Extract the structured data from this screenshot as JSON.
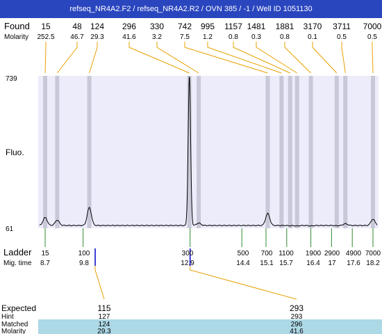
{
  "title": "refseq_NR4A2.F2 / refseq_NR4A2.R2 / OVN 385 / -1 / Well ID 1051130",
  "labels": {
    "found": "Found",
    "molarity": "Molarity",
    "fluo": "Fluo.",
    "ladder": "Ladder",
    "mig_time": "Mig. time",
    "expected": "Expected",
    "hint": "Hint",
    "matched": "Matched",
    "molarity_row": "Molarity"
  },
  "colors": {
    "title_bg": "#2a46bf",
    "plot_bg": "#ececfb",
    "peak_band": "#c8c8d8",
    "connector": "#e8a000",
    "ladder_tick": "#2e8b2e",
    "marker": "#0000cc",
    "matched_bg": "#add8e6"
  },
  "chart_data": {
    "type": "line",
    "y_axis": {
      "max_label": "739",
      "min_label": "61",
      "ylim": [
        61,
        739
      ]
    },
    "found_peaks": [
      {
        "size": "15",
        "molarity": "252.5",
        "mig_time": 8.7,
        "height": 100
      },
      {
        "size": "48",
        "molarity": "46.7",
        "mig_time": 9.05,
        "height": 88
      },
      {
        "size": "124",
        "molarity": "29.3",
        "mig_time": 9.98,
        "height": 145
      },
      {
        "size": "296",
        "molarity": "41.6",
        "mig_time": 12.88,
        "height": 739
      },
      {
        "size": "330",
        "molarity": "3.2",
        "mig_time": 13.15,
        "height": 75
      },
      {
        "size": "742",
        "molarity": "7.5",
        "mig_time": 15.15,
        "height": 118
      },
      {
        "size": "995",
        "molarity": "1.2",
        "mig_time": 15.55,
        "height": 64
      },
      {
        "size": "1157",
        "molarity": "0.8",
        "mig_time": 15.8,
        "height": 63
      },
      {
        "size": "1481",
        "molarity": "0.3",
        "mig_time": 16.0,
        "height": 62
      },
      {
        "size": "1881",
        "molarity": "0.8",
        "mig_time": 16.4,
        "height": 62
      },
      {
        "size": "3170",
        "molarity": "0.1",
        "mig_time": 17.15,
        "height": 63
      },
      {
        "size": "3711",
        "molarity": "0.5",
        "mig_time": 17.4,
        "height": 72
      },
      {
        "size": "7000",
        "molarity": "0.5",
        "mig_time": 18.2,
        "height": 92
      }
    ],
    "ladder": [
      {
        "size": "15",
        "mig_time": "8.7"
      },
      {
        "size": "100",
        "mig_time": "9.8"
      },
      {
        "size": "300",
        "mig_time": "12.9"
      },
      {
        "size": "500",
        "mig_time": "14.4"
      },
      {
        "size": "700",
        "mig_time": "15.1"
      },
      {
        "size": "1100",
        "mig_time": "15.7"
      },
      {
        "size": "1900",
        "mig_time": "16.4"
      },
      {
        "size": "2900",
        "mig_time": "17"
      },
      {
        "size": "4900",
        "mig_time": "17.6"
      },
      {
        "size": "7000",
        "mig_time": "18.2"
      }
    ],
    "expected": [
      {
        "expected": "115",
        "hint": "127",
        "matched": "124",
        "molarity": "29.3",
        "mig_time": 10.15
      },
      {
        "expected": "293",
        "hint": "293",
        "matched": "296",
        "molarity": "41.6",
        "mig_time": 12.9
      }
    ]
  }
}
